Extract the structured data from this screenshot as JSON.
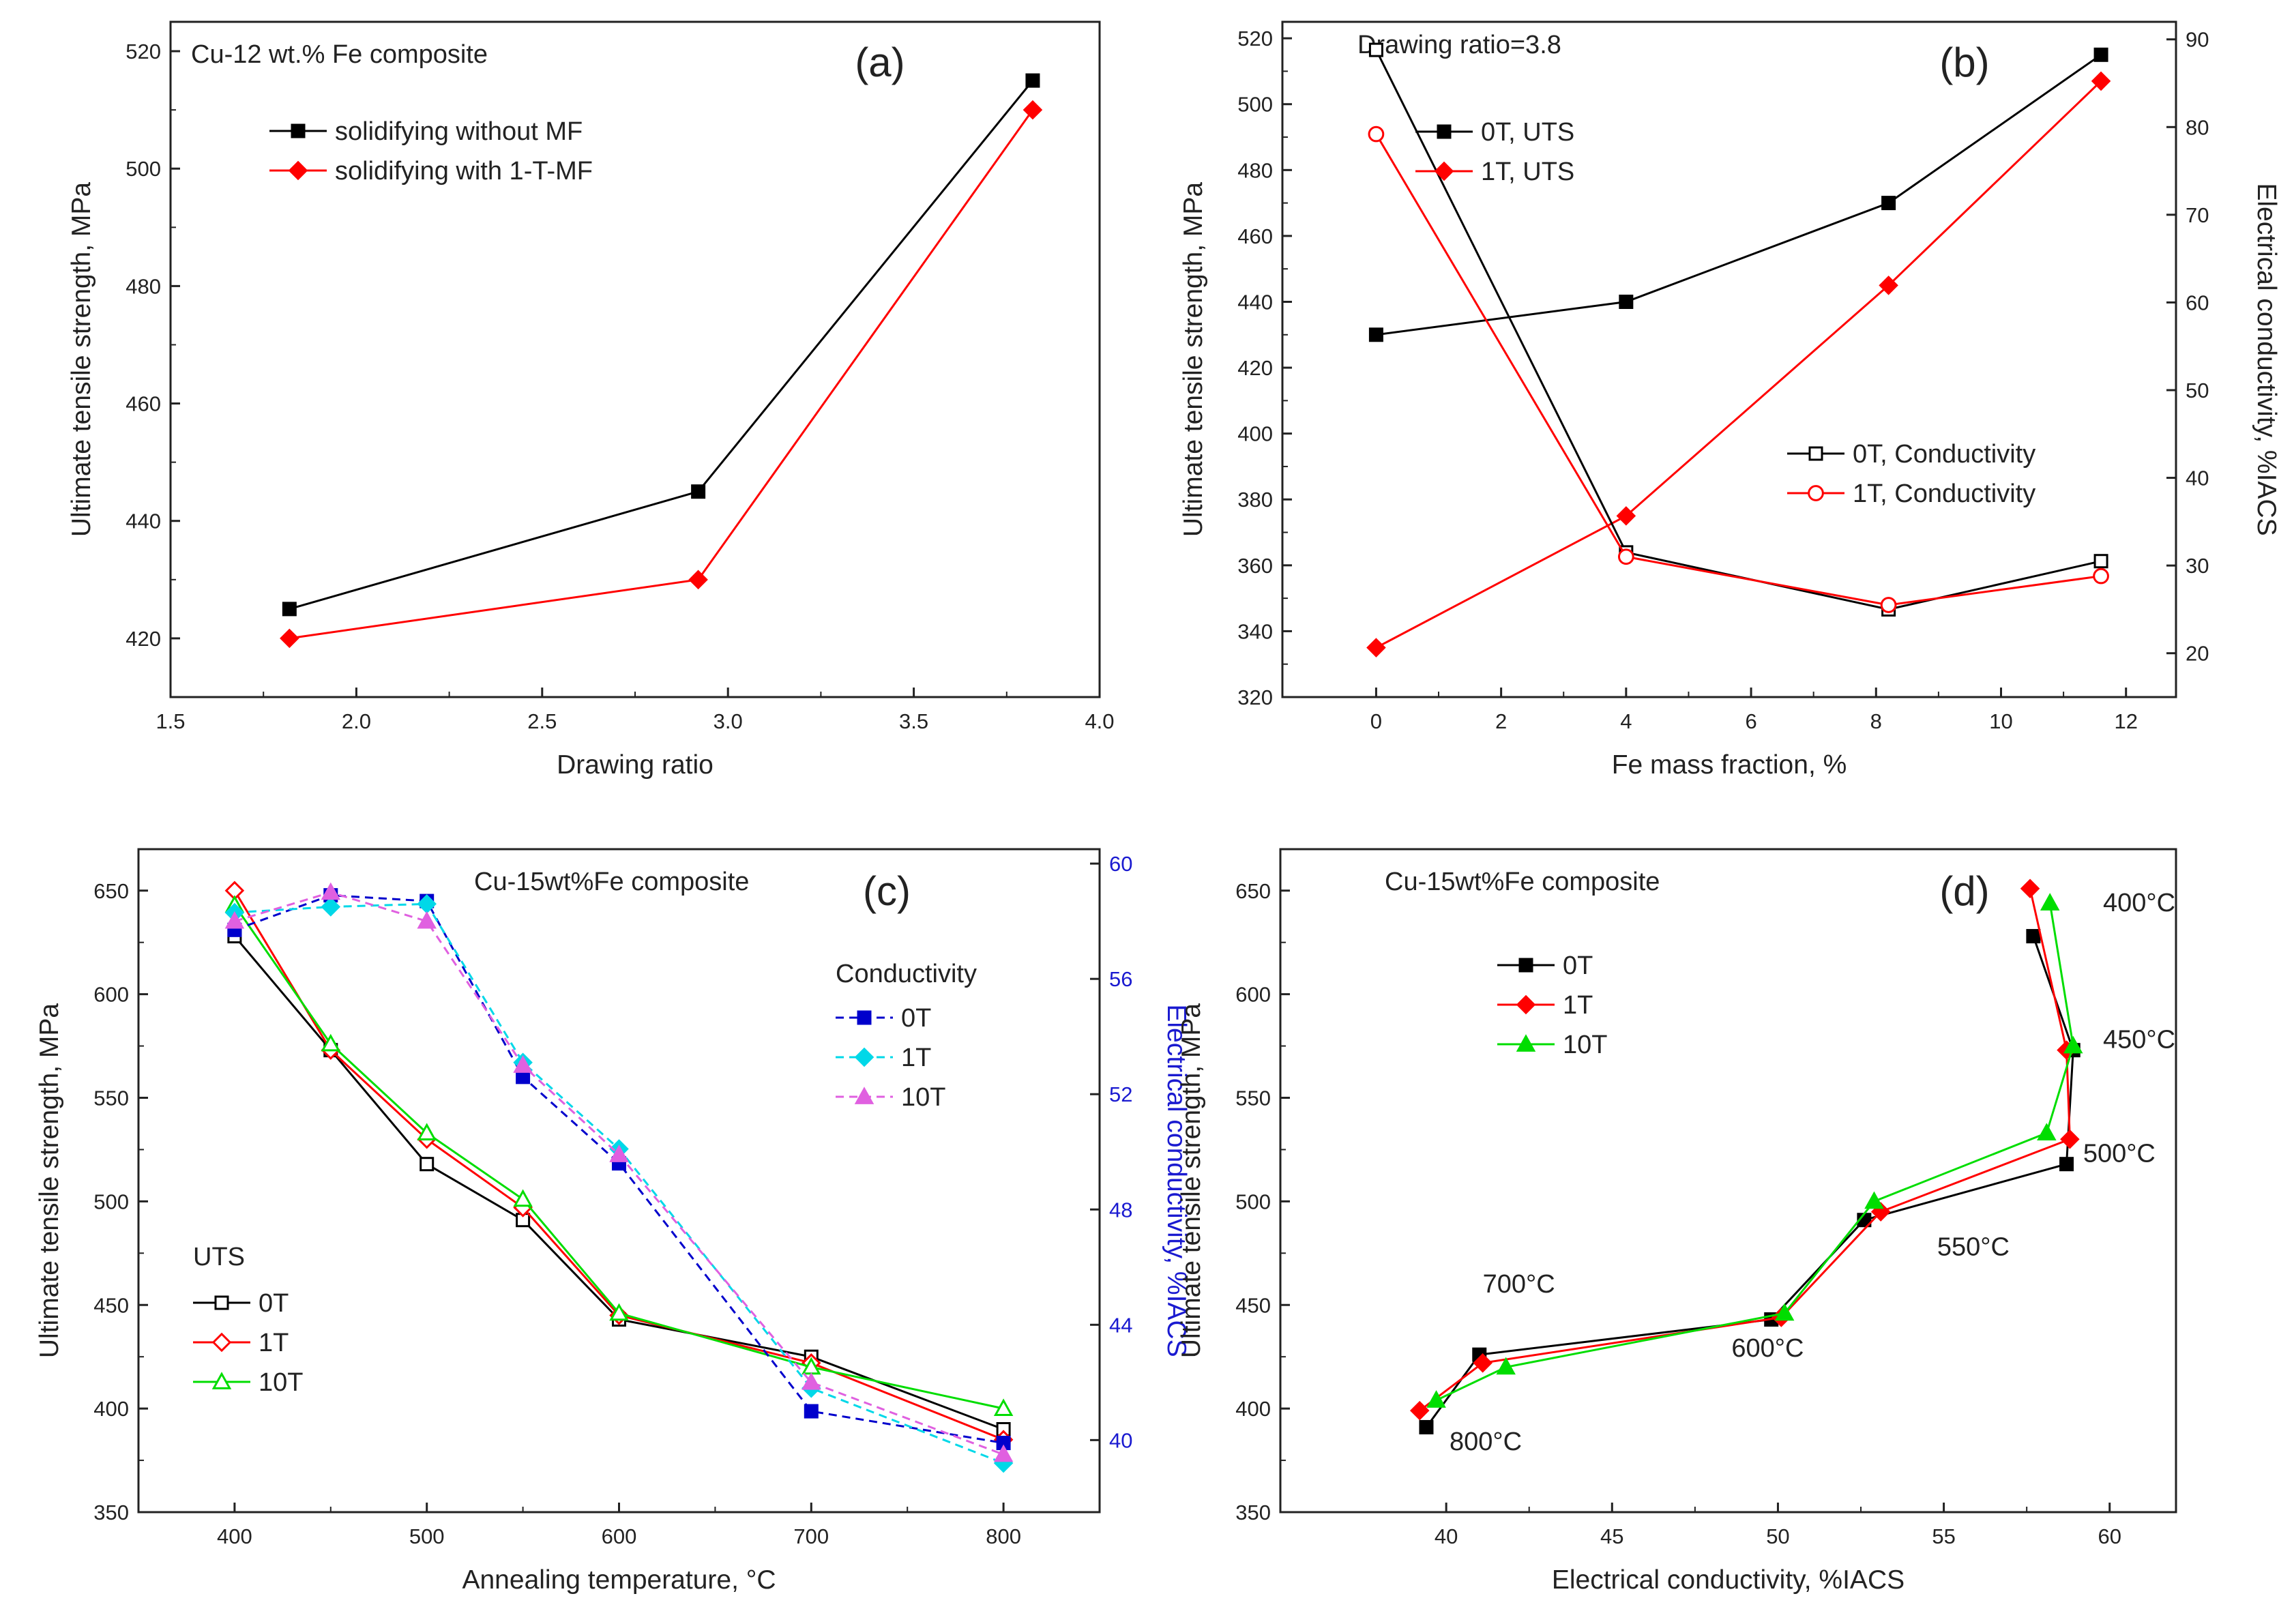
{
  "chart_data": [
    {
      "id": "a",
      "type": "line",
      "panel_label": "(a)",
      "title": "Cu-12 wt.% Fe composite",
      "xlabel": "Drawing ratio",
      "ylabel": "Ultimate tensile strength, MPa",
      "xlim": [
        1.5,
        4.0
      ],
      "ylim": [
        410,
        525
      ],
      "xticks": [
        1.5,
        2.0,
        2.5,
        3.0,
        3.5,
        4.0
      ],
      "xticklabels": [
        "1.5",
        "2.0",
        "2.5",
        "3.0",
        "3.5",
        "4.0"
      ],
      "yticks": [
        420,
        440,
        460,
        480,
        500,
        520
      ],
      "yticklabels": [
        "420",
        "440",
        "460",
        "480",
        "500",
        "520"
      ],
      "legend_position": "top-left",
      "series": [
        {
          "name": "solidifying without MF",
          "color": "#000000",
          "marker": "square-filled",
          "dash": "solid",
          "x": [
            1.82,
            2.92,
            3.82
          ],
          "y": [
            425,
            445,
            515
          ]
        },
        {
          "name": "solidifying with 1-T-MF",
          "color": "#ff0000",
          "marker": "diamond-filled",
          "dash": "solid",
          "x": [
            1.82,
            2.92,
            3.82
          ],
          "y": [
            420,
            430,
            510
          ]
        }
      ]
    },
    {
      "id": "b",
      "type": "line",
      "panel_label": "(b)",
      "title": "Drawing ratio=3.8",
      "xlabel": "Fe mass fraction, %",
      "ylabel": "Ultimate tensile strength, MPa",
      "ylabel_right": "Electrical conductivity, %IACS",
      "xlim": [
        -1.5,
        12.8
      ],
      "ylim": [
        320,
        525
      ],
      "ylim_right": [
        15,
        92
      ],
      "xticks": [
        0,
        2,
        4,
        6,
        8,
        10,
        12
      ],
      "xticklabels": [
        "0",
        "2",
        "4",
        "6",
        "8",
        "10",
        "12"
      ],
      "yticks": [
        320,
        340,
        360,
        380,
        400,
        420,
        440,
        460,
        480,
        500,
        520
      ],
      "yticklabels": [
        "320",
        "340",
        "360",
        "380",
        "400",
        "420",
        "440",
        "460",
        "480",
        "500",
        "520"
      ],
      "yticks_right": [
        20,
        30,
        40,
        50,
        60,
        70,
        80,
        90
      ],
      "yticklabels_right": [
        "20",
        "30",
        "40",
        "50",
        "60",
        "70",
        "80",
        "90"
      ],
      "series": [
        {
          "name": "0T, UTS",
          "axis": "left",
          "color": "#000000",
          "marker": "square-filled",
          "dash": "solid",
          "x": [
            0,
            4,
            8.2,
            11.6
          ],
          "y": [
            430,
            440,
            470,
            515
          ]
        },
        {
          "name": "1T, UTS",
          "axis": "left",
          "color": "#ff0000",
          "marker": "diamond-filled",
          "dash": "solid",
          "x": [
            0,
            4,
            8.2,
            11.6
          ],
          "y": [
            335,
            375,
            445,
            507
          ]
        },
        {
          "name": "0T, Conductivity",
          "axis": "right",
          "color": "#000000",
          "marker": "square-open",
          "dash": "solid",
          "x": [
            0,
            4,
            8.2,
            11.6
          ],
          "y": [
            88.8,
            31.5,
            25.0,
            30.5
          ]
        },
        {
          "name": "1T, Conductivity",
          "axis": "right",
          "color": "#ff0000",
          "marker": "circle-open",
          "dash": "solid",
          "x": [
            0,
            4,
            8.2,
            11.6
          ],
          "y": [
            79.2,
            31.0,
            25.5,
            28.8
          ]
        }
      ]
    },
    {
      "id": "c",
      "type": "line",
      "panel_label": "(c)",
      "title": "Cu-15wt%Fe composite",
      "xlabel": "Annealing temperature, °C",
      "ylabel": "Ultimate tensile strength, MPa",
      "ylabel_right": "Electrical conductivity, %IACS",
      "xlim": [
        350,
        850
      ],
      "ylim": [
        350,
        670
      ],
      "ylim_right": [
        37.5,
        60.5
      ],
      "xticks": [
        400,
        500,
        600,
        700,
        800
      ],
      "xticklabels": [
        "400",
        "500",
        "600",
        "700",
        "800"
      ],
      "yticks": [
        350,
        400,
        450,
        500,
        550,
        600,
        650
      ],
      "yticklabels": [
        "350",
        "400",
        "450",
        "500",
        "550",
        "600",
        "650"
      ],
      "yticks_right": [
        40,
        44,
        48,
        52,
        56,
        60
      ],
      "yticklabels_right": [
        "40",
        "44",
        "48",
        "52",
        "56",
        "60"
      ],
      "legend_uts_title": "UTS",
      "legend_cond_title": "Conductivity",
      "series": [
        {
          "name": "0T",
          "group": "UTS",
          "axis": "left",
          "color": "#000000",
          "marker": "square-open",
          "dash": "solid",
          "x": [
            400,
            450,
            500,
            550,
            600,
            700,
            800
          ],
          "y": [
            628,
            573,
            518,
            491,
            443,
            425,
            390
          ]
        },
        {
          "name": "1T",
          "group": "UTS",
          "axis": "left",
          "color": "#ff0000",
          "marker": "diamond-open",
          "dash": "solid",
          "x": [
            400,
            450,
            500,
            550,
            600,
            700,
            800
          ],
          "y": [
            650,
            573,
            530,
            497,
            445,
            422,
            385
          ]
        },
        {
          "name": "10T",
          "group": "UTS",
          "axis": "left",
          "color": "#00dd00",
          "marker": "triangle-open",
          "dash": "solid",
          "x": [
            400,
            450,
            500,
            550,
            600,
            700,
            800
          ],
          "y": [
            643,
            576,
            533,
            501,
            446,
            420,
            400
          ]
        },
        {
          "name": "0T",
          "group": "Conductivity",
          "axis": "right",
          "color": "#0000cc",
          "marker": "square-filled",
          "dash": "dashed",
          "x": [
            400,
            450,
            500,
            550,
            600,
            700,
            800
          ],
          "y": [
            57.7,
            58.9,
            58.7,
            52.6,
            49.6,
            41.0,
            39.9
          ]
        },
        {
          "name": "1T",
          "group": "Conductivity",
          "axis": "right",
          "color": "#00d8e8",
          "marker": "diamond-filled",
          "dash": "dashed",
          "x": [
            400,
            450,
            500,
            550,
            600,
            700,
            800
          ],
          "y": [
            58.3,
            58.5,
            58.6,
            53.1,
            50.1,
            41.8,
            39.2
          ]
        },
        {
          "name": "10T",
          "group": "Conductivity",
          "axis": "right",
          "color": "#e060e0",
          "marker": "triangle-filled",
          "dash": "dashed",
          "x": [
            400,
            450,
            500,
            550,
            600,
            700,
            800
          ],
          "y": [
            58.0,
            59.0,
            58.0,
            53.0,
            49.9,
            42.0,
            39.5
          ]
        }
      ]
    },
    {
      "id": "d",
      "type": "line",
      "panel_label": "(d)",
      "title": "Cu-15wt%Fe composite",
      "xlabel": "Electrical conductivity, %IACS",
      "ylabel": "Ultimate tensile strength, MPa",
      "xlim": [
        35,
        62
      ],
      "ylim": [
        350,
        670
      ],
      "xticks": [
        40,
        45,
        50,
        55,
        60
      ],
      "xticklabels": [
        "40",
        "45",
        "50",
        "55",
        "60"
      ],
      "yticks": [
        350,
        400,
        450,
        500,
        550,
        600,
        650
      ],
      "yticklabels": [
        "350",
        "400",
        "450",
        "500",
        "550",
        "600",
        "650"
      ],
      "annotations": [
        {
          "text": "400°C",
          "x": 59.8,
          "y": 640
        },
        {
          "text": "450°C",
          "x": 59.8,
          "y": 574
        },
        {
          "text": "500°C",
          "x": 59.2,
          "y": 519
        },
        {
          "text": "550°C",
          "x": 54.8,
          "y": 474
        },
        {
          "text": "600°C",
          "x": 48.6,
          "y": 425
        },
        {
          "text": "700°C",
          "x": 41.1,
          "y": 456
        },
        {
          "text": "800°C",
          "x": 40.1,
          "y": 380
        }
      ],
      "series": [
        {
          "name": "0T",
          "color": "#000000",
          "marker": "square-filled",
          "dash": "solid",
          "x": [
            57.7,
            58.9,
            58.7,
            52.6,
            49.8,
            41.0,
            39.4
          ],
          "y": [
            628,
            573,
            518,
            491,
            443,
            426,
            391
          ]
        },
        {
          "name": "1T",
          "color": "#ff0000",
          "marker": "diamond-filled",
          "dash": "solid",
          "x": [
            57.6,
            58.7,
            58.8,
            53.1,
            50.1,
            41.1,
            39.2
          ],
          "y": [
            651,
            573,
            530,
            495,
            444,
            422,
            399
          ]
        },
        {
          "name": "10T",
          "color": "#00dd00",
          "marker": "triangle-filled",
          "dash": "solid",
          "x": [
            58.2,
            58.9,
            58.1,
            52.9,
            50.2,
            41.8,
            39.7
          ],
          "y": [
            644,
            575,
            533,
            500,
            446,
            420,
            404
          ]
        }
      ]
    }
  ]
}
